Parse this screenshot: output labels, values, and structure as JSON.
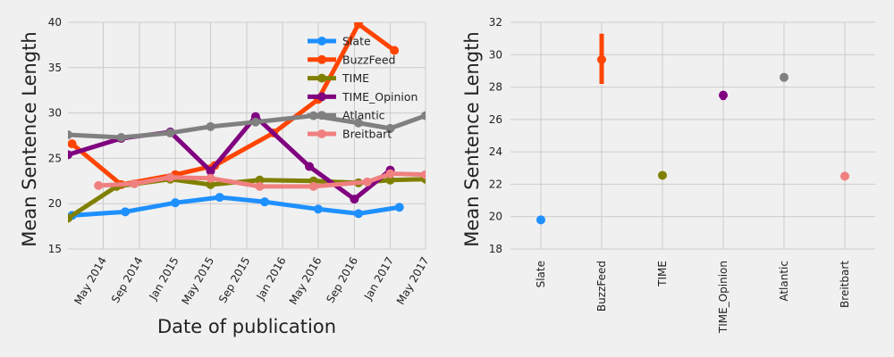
{
  "chart_data": [
    {
      "type": "line",
      "xlabel": "Date of publication",
      "ylabel": "Mean Sentence Length",
      "xlim": [
        "2014-01-01",
        "2017-05-01"
      ],
      "ylim": [
        15,
        40
      ],
      "x_ticks": [
        "2014-05-01",
        "2014-09-01",
        "2015-01-01",
        "2015-05-01",
        "2015-09-01",
        "2016-01-01",
        "2016-05-01",
        "2016-09-01",
        "2017-01-01",
        "2017-05-01"
      ],
      "x_tick_labels": [
        "May 2014",
        "Sep 2014",
        "Jan 2015",
        "May 2015",
        "Sep 2015",
        "Jan 2016",
        "May 2016",
        "Sep 2016",
        "Jan 2017",
        "May 2017"
      ],
      "y_ticks": [
        15,
        20,
        25,
        30,
        35,
        40
      ],
      "grid": true,
      "legend_position": "top-right",
      "series": [
        {
          "name": "Slate",
          "color": "#1e90ff",
          "points": [
            [
              "2014-01-15",
              18.7
            ],
            [
              "2014-07-15",
              19.1
            ],
            [
              "2015-01-01",
              20.1
            ],
            [
              "2015-06-01",
              20.7
            ],
            [
              "2015-11-01",
              20.2
            ],
            [
              "2016-05-01",
              19.4
            ],
            [
              "2016-09-15",
              18.9
            ],
            [
              "2017-02-01",
              19.6
            ]
          ]
        },
        {
          "name": "BuzzFeed",
          "color": "#ff4500",
          "points": [
            [
              "2014-01-15",
              26.6
            ],
            [
              "2014-07-01",
              22.1
            ],
            [
              "2015-01-01",
              23.2
            ],
            [
              "2015-05-15",
              24.2
            ],
            [
              "2015-12-01",
              27.8
            ],
            [
              "2016-05-01",
              31.5
            ],
            [
              "2016-09-15",
              39.8
            ],
            [
              "2017-01-15",
              36.9
            ]
          ]
        },
        {
          "name": "TIME",
          "color": "#808000",
          "points": [
            [
              "2014-01-01",
              18.4
            ],
            [
              "2014-06-15",
              21.9
            ],
            [
              "2014-12-15",
              22.7
            ],
            [
              "2015-05-01",
              22.1
            ],
            [
              "2015-10-15",
              22.6
            ],
            [
              "2016-04-15",
              22.5
            ],
            [
              "2016-09-15",
              22.3
            ],
            [
              "2017-01-01",
              22.6
            ],
            [
              "2017-05-01",
              22.7
            ]
          ]
        },
        {
          "name": "TIME_Opinion",
          "color": "#800080",
          "points": [
            [
              "2014-01-01",
              25.4
            ],
            [
              "2014-07-01",
              27.2
            ],
            [
              "2014-12-15",
              27.9
            ],
            [
              "2015-05-01",
              23.6
            ],
            [
              "2015-10-01",
              29.6
            ],
            [
              "2016-04-01",
              24.1
            ],
            [
              "2016-09-01",
              20.5
            ],
            [
              "2017-01-01",
              23.7
            ]
          ]
        },
        {
          "name": "Atlantic",
          "color": "#808080",
          "points": [
            [
              "2014-01-01",
              27.6
            ],
            [
              "2014-07-01",
              27.3
            ],
            [
              "2014-12-15",
              27.8
            ],
            [
              "2015-05-01",
              28.5
            ],
            [
              "2015-10-01",
              29.0
            ],
            [
              "2016-04-15",
              29.7
            ],
            [
              "2016-09-15",
              28.9
            ],
            [
              "2017-01-01",
              28.3
            ],
            [
              "2017-05-01",
              29.7
            ]
          ]
        },
        {
          "name": "Breitbart",
          "color": "#f08080",
          "points": [
            [
              "2014-04-15",
              22.0
            ],
            [
              "2014-08-15",
              22.2
            ],
            [
              "2014-12-15",
              22.9
            ],
            [
              "2015-05-01",
              22.8
            ],
            [
              "2015-10-15",
              21.9
            ],
            [
              "2016-04-15",
              21.9
            ],
            [
              "2016-10-15",
              22.4
            ],
            [
              "2017-01-01",
              23.3
            ],
            [
              "2017-05-01",
              23.2
            ]
          ]
        }
      ]
    },
    {
      "type": "scatter",
      "ylabel": "Mean Sentence Length",
      "categories": [
        "Slate",
        "BuzzFeed",
        "TIME",
        "TIME_Opinion",
        "Atlantic",
        "Breitbart"
      ],
      "ylim": [
        18,
        32
      ],
      "y_ticks": [
        18,
        20,
        22,
        24,
        26,
        28,
        30,
        32
      ],
      "grid": true,
      "series": [
        {
          "category": "Slate",
          "color": "#1e90ff",
          "value": 19.8,
          "err_low": 19.6,
          "err_high": 19.95
        },
        {
          "category": "BuzzFeed",
          "color": "#ff4500",
          "value": 29.7,
          "err_low": 28.2,
          "err_high": 31.3
        },
        {
          "category": "TIME",
          "color": "#808000",
          "value": 22.55,
          "err_low": 22.5,
          "err_high": 22.6
        },
        {
          "category": "TIME_Opinion",
          "color": "#800080",
          "value": 27.5,
          "err_low": 27.2,
          "err_high": 27.75
        },
        {
          "category": "Atlantic",
          "color": "#808080",
          "value": 28.6,
          "err_low": 28.55,
          "err_high": 28.65
        },
        {
          "category": "Breitbart",
          "color": "#f08080",
          "value": 22.5,
          "err_low": 22.45,
          "err_high": 22.55
        }
      ]
    }
  ]
}
